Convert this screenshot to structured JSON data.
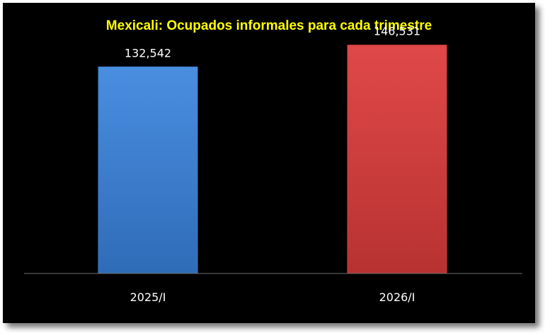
{
  "chart_data": {
    "type": "bar",
    "title": "Mexicali: Ocupados informales para cada trimestre",
    "categories": [
      "2025/I",
      "2026/I"
    ],
    "values": [
      132542,
      146531
    ],
    "value_labels": [
      "132,542",
      "146,531"
    ],
    "colors": [
      "#3d7fd0",
      "#d53e3e"
    ],
    "xlabel": "",
    "ylabel": "",
    "ylim": [
      0,
      160000
    ],
    "grid": false,
    "legend": "none"
  }
}
